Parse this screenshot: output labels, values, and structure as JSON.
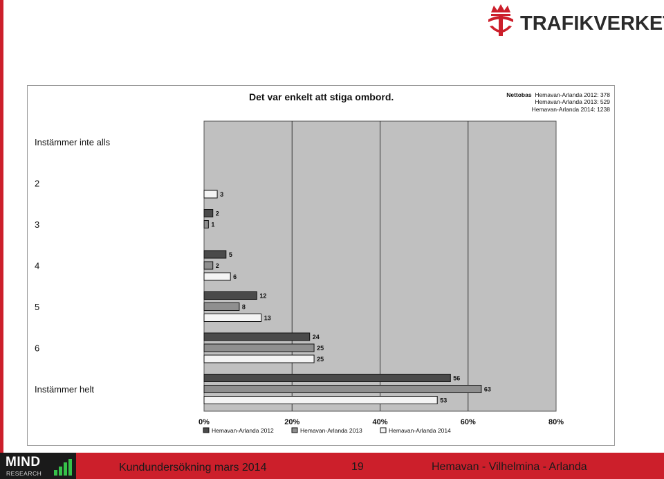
{
  "logo": {
    "brand_text": "TRAFIKVERKET"
  },
  "nettobas": {
    "label": "Nettobas",
    "lines": [
      "Hemavan-Arlanda 2012: 378",
      "Hemavan-Arlanda 2013: 529",
      "Hemavan-Arlanda 2014: 1238"
    ]
  },
  "footer": {
    "left_text": "Kundundersökning mars 2014",
    "page": "19",
    "right_text": "Hemavan - Vilhelmina - Arlanda",
    "mind_logo": "MIND",
    "mind_sub": "RESEARCH"
  },
  "colors": {
    "brand_red": "#cc1f2b",
    "plot_bg": "#c0c0c0",
    "series_2012": "#4a4a4a",
    "series_2013": "#8f8f8f",
    "series_2014": "#f4f4f4"
  },
  "chart_data": {
    "type": "bar",
    "orientation": "horizontal",
    "title": "Det var enkelt att stiga ombord.",
    "categories": [
      "Instämmer inte alls",
      "2",
      "3",
      "4",
      "5",
      "6",
      "Instämmer helt"
    ],
    "series": [
      {
        "name": "Hemavan-Arlanda 2012",
        "values": [
          null,
          null,
          2,
          5,
          12,
          24,
          56
        ]
      },
      {
        "name": "Hemavan-Arlanda 2013",
        "values": [
          null,
          null,
          1,
          2,
          8,
          25,
          63
        ]
      },
      {
        "name": "Hemavan-Arlanda 2014",
        "values": [
          null,
          3,
          null,
          6,
          13,
          25,
          53
        ]
      }
    ],
    "xlim": [
      0,
      80
    ],
    "xticks": [
      "0%",
      "20%",
      "40%",
      "60%",
      "80%"
    ],
    "legend_position": "bottom",
    "grid": true
  }
}
